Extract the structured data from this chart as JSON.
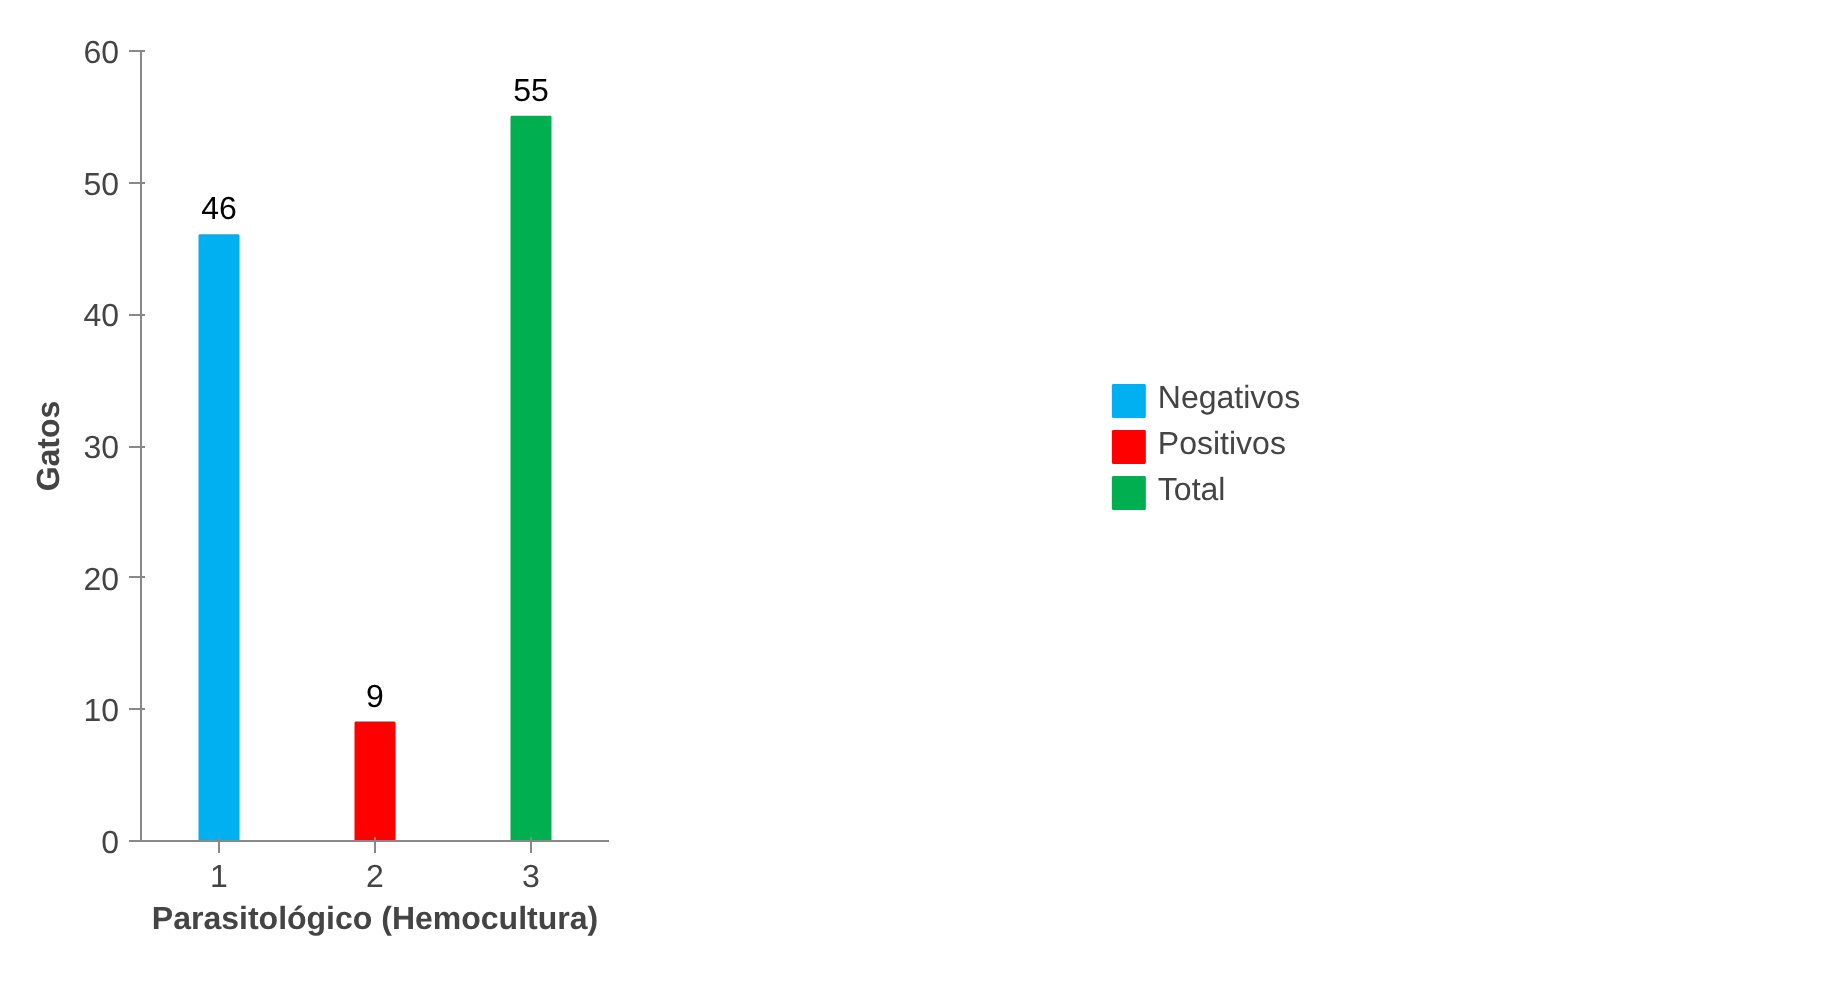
{
  "chart_data": {
    "type": "bar",
    "xlabel": "Parasitológico (Hemocultura)",
    "ylabel": "Gatos",
    "categories": [
      "1",
      "2",
      "3"
    ],
    "series": [
      {
        "name": "Negativos",
        "color": "#00b0f0",
        "values": [
          46,
          null,
          null
        ]
      },
      {
        "name": "Positivos",
        "color": "#ff0000",
        "values": [
          null,
          9,
          null
        ]
      },
      {
        "name": "Total",
        "color": "#00b050",
        "values": [
          null,
          null,
          55
        ]
      }
    ],
    "ylim": [
      0,
      60
    ],
    "yticks": [
      0,
      10,
      20,
      30,
      40,
      50,
      60
    ],
    "grid": false,
    "legend": "right",
    "data_labels": true
  }
}
